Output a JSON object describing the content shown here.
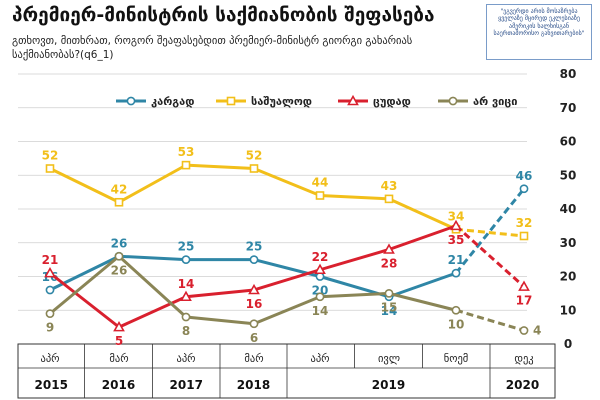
{
  "title": "პრემიერ-მინისტრის საქმიანობის შეფასება",
  "subtitle": "გთხოვთ, მითხრათ, როგორ შეაფასებდით პრემიერ-მინისტრ გიორგი გახარიას საქმიანობას?(q6_1)",
  "logo_text": "\"ეგვერდი არის მოსაზრება ყველაზე მცირედ ეკლესიაზე ამერიკის ხალხისგან საერთაშორისო განვითარების\"",
  "colors": {
    "good": "#2f86a6",
    "average": "#f2bf1a",
    "bad": "#d9202e",
    "dont_know": "#8a8556",
    "grid": "#cfcfcf",
    "border": "#333333"
  },
  "chart_data": {
    "type": "line",
    "title": "პრემიერ-მინისტრის საქმიანობის შეფასება",
    "ylim": [
      0,
      80
    ],
    "yticks": [
      0,
      10,
      20,
      30,
      40,
      50,
      60,
      70,
      80
    ],
    "y_axis_position": "right",
    "grid": true,
    "legend_placement": "top",
    "categories": [
      "აპრ",
      "მარ",
      "აპრ",
      "მარ",
      "აპრ",
      "ივლ",
      "ნოემ",
      "დეკ"
    ],
    "year_groups": [
      {
        "label": "2015",
        "span": 1
      },
      {
        "label": "2016",
        "span": 1
      },
      {
        "label": "2017",
        "span": 1
      },
      {
        "label": "2018",
        "span": 1
      },
      {
        "label": "2019",
        "span": 3
      },
      {
        "label": "2020",
        "span": 1
      }
    ],
    "series": [
      {
        "name": "კარგად",
        "key": "good",
        "marker": "circle",
        "values": [
          16,
          26,
          25,
          25,
          20,
          14,
          21,
          46
        ],
        "label_pos": [
          "above",
          "above",
          "above",
          "above",
          "below",
          "below",
          "above",
          "above"
        ]
      },
      {
        "name": "საშუალოდ",
        "key": "average",
        "marker": "square",
        "values": [
          52,
          42,
          53,
          52,
          44,
          43,
          34,
          32
        ],
        "label_pos": [
          "above",
          "above",
          "above",
          "above",
          "above",
          "above",
          "above",
          "above"
        ]
      },
      {
        "name": "ცუდად",
        "key": "bad",
        "marker": "triangle",
        "values": [
          21,
          5,
          14,
          16,
          22,
          28,
          35,
          17
        ],
        "label_pos": [
          "above",
          "below",
          "above",
          "below",
          "above",
          "below",
          "below",
          "below"
        ]
      },
      {
        "name": "არ ვიცი",
        "key": "dont_know",
        "marker": "circle",
        "values": [
          9,
          26,
          8,
          6,
          14,
          15,
          10,
          4
        ],
        "label_pos": [
          "below",
          "below",
          "below",
          "below",
          "below",
          "below",
          "below",
          "right"
        ]
      }
    ],
    "dashed_last_segment": true
  }
}
